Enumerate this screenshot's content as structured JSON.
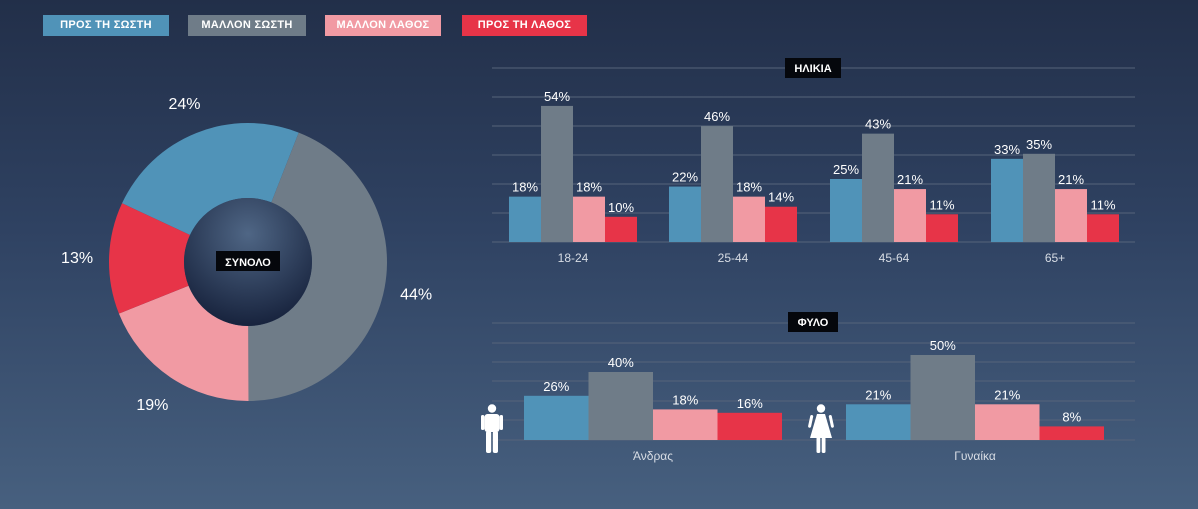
{
  "colors": {
    "pros_ti_sosti": "#5093b8",
    "mallon_sosti": "#6f7c88",
    "mallon_lathos": "#f19aa3",
    "pros_ti_lathos": "#e73448",
    "label_text": "#ffffff",
    "axis_text": "#d8dde5",
    "grid": "#56647a"
  },
  "legend": {
    "items": [
      {
        "label": "ΠΡΟΣ ΤΗ ΣΩΣΤΗ",
        "color": "#5093b8"
      },
      {
        "label": "ΜΑΛΛΟΝ ΣΩΣΤΗ",
        "color": "#6f7c88"
      },
      {
        "label": "ΜΑΛΛΟΝ ΛΑΘΟΣ",
        "color": "#f19aa3"
      },
      {
        "label": "ΠΡΟΣ ΤΗ ΛΑΘΟΣ",
        "color": "#e73448"
      }
    ]
  },
  "icons": {
    "male": "male-figure-icon",
    "female": "female-figure-icon"
  },
  "chart_data": [
    {
      "type": "pie",
      "title": "ΣΥΝΟΛΟ",
      "labels": [
        "ΠΡΟΣ ΤΗ ΣΩΣΤΗ",
        "ΜΑΛΛΟΝ ΣΩΣΤΗ",
        "ΜΑΛΛΟΝ ΛΑΘΟΣ",
        "ΠΡΟΣ ΤΗ ΛΑΘΟΣ"
      ],
      "values": [
        24,
        44,
        19,
        13
      ],
      "value_labels": [
        "24%",
        "44%",
        "19%",
        "13%"
      ]
    },
    {
      "type": "bar",
      "title": "ΗΛΙΚΙΑ",
      "categories": [
        "18-24",
        "25-44",
        "45-64",
        "65+"
      ],
      "ylim": [
        0,
        60
      ],
      "series": [
        {
          "name": "ΠΡΟΣ ΤΗ ΣΩΣΤΗ",
          "values": [
            18,
            22,
            25,
            33
          ],
          "labels": [
            "18%",
            "22%",
            "25%",
            "33%"
          ]
        },
        {
          "name": "ΜΑΛΛΟΝ ΣΩΣΤΗ",
          "values": [
            54,
            46,
            43,
            35
          ],
          "labels": [
            "54%",
            "46%",
            "43%",
            "35%"
          ]
        },
        {
          "name": "ΜΑΛΛΟΝ ΛΑΘΟΣ",
          "values": [
            18,
            18,
            21,
            21
          ],
          "labels": [
            "18%",
            "18%",
            "21%",
            "21%"
          ]
        },
        {
          "name": "ΠΡΟΣ ΤΗ ΛΑΘΟΣ",
          "values": [
            10,
            14,
            11,
            11
          ],
          "labels": [
            "10%",
            "14%",
            "11%",
            "11%"
          ]
        }
      ]
    },
    {
      "type": "bar",
      "title": "ΦΥΛΟ",
      "categories": [
        "Άνδρας",
        "Γυναίκα"
      ],
      "ylim": [
        0,
        55
      ],
      "series": [
        {
          "name": "ΠΡΟΣ ΤΗ ΣΩΣΤΗ",
          "values": [
            26,
            21
          ],
          "labels": [
            "26%",
            "21%"
          ]
        },
        {
          "name": "ΜΑΛΛΟΝ ΣΩΣΤΗ",
          "values": [
            40,
            50
          ],
          "labels": [
            "40%",
            "50%"
          ]
        },
        {
          "name": "ΜΑΛΛΟΝ ΛΑΘΟΣ",
          "values": [
            18,
            21
          ],
          "labels": [
            "18%",
            "21%"
          ]
        },
        {
          "name": "ΠΡΟΣ ΤΗ ΛΑΘΟΣ",
          "values": [
            16,
            8
          ],
          "labels": [
            "16%",
            "8%"
          ]
        }
      ]
    }
  ]
}
